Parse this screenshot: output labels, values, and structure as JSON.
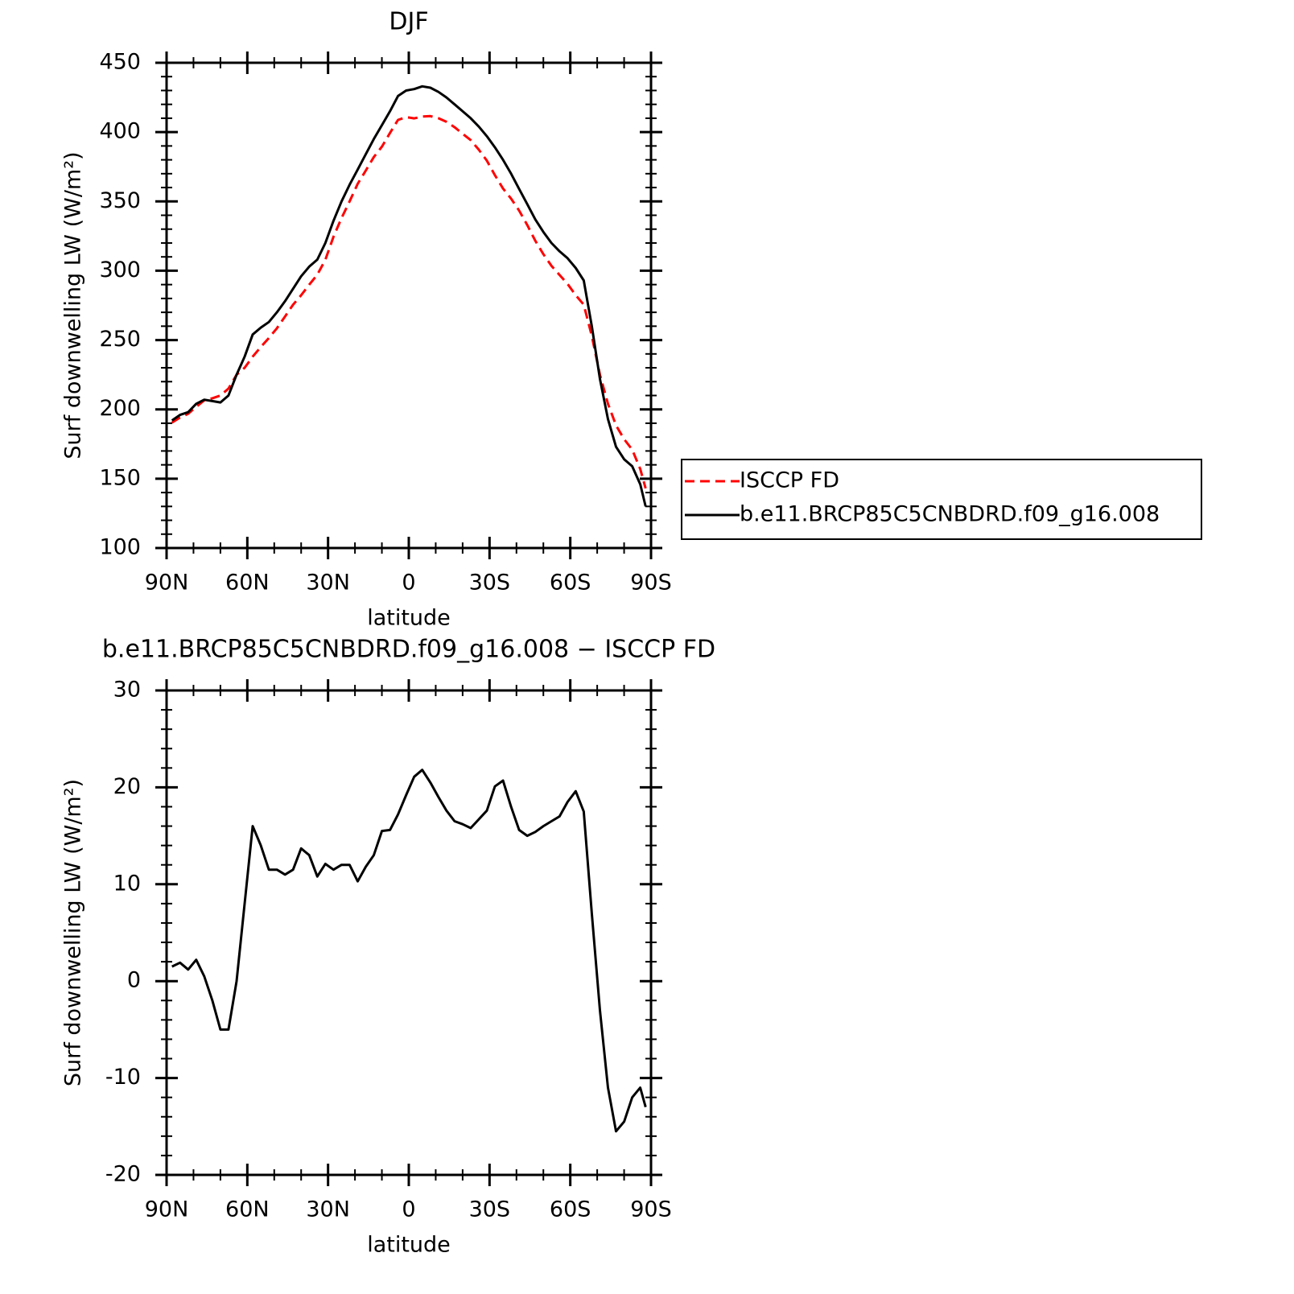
{
  "chart_data": [
    {
      "type": "line",
      "title": "DJF",
      "x_label": "latitude",
      "y_label": "Surf downwelling LW (W/m²)",
      "x": [
        88,
        85,
        82,
        79,
        76,
        73,
        70,
        67,
        64,
        61,
        58,
        55,
        52,
        49,
        46,
        43,
        40,
        37,
        34,
        31,
        28,
        25,
        22,
        19,
        16,
        13,
        10,
        7,
        4,
        1,
        -2,
        -5,
        -8,
        -11,
        -14,
        -17,
        -20,
        -23,
        -26,
        -29,
        -32,
        -35,
        -38,
        -41,
        -44,
        -47,
        -50,
        -53,
        -56,
        -59,
        -62,
        -65,
        -68,
        -71,
        -74,
        -77,
        -80,
        -83,
        -86,
        -88
      ],
      "series": [
        {
          "name": "ISCCP FD",
          "color": "#ff0000",
          "line_style": "dashed",
          "values": [
            190.5,
            194.1,
            196.8,
            201.8,
            206.5,
            208,
            210,
            215,
            225,
            230,
            238,
            245,
            251.5,
            258.5,
            267,
            275.5,
            282.3,
            290,
            297.2,
            307.9,
            324.5,
            338,
            350,
            362.7,
            372.2,
            382,
            389.5,
            399.4,
            408.8,
            410.8,
            409.9,
            411.2,
            411.5,
            410,
            407.4,
            403.5,
            398.8,
            394.2,
            387.3,
            379.4,
            368.9,
            359.3,
            352,
            343.4,
            333,
            321.6,
            312,
            303.5,
            297,
            290.5,
            282.4,
            275.5,
            253,
            225,
            204,
            188.5,
            178.5,
            171,
            157,
            143
          ]
        },
        {
          "name": "b.e11.BRCP85C5CNBDRD.f09_g16.008",
          "color": "#000000",
          "line_style": "solid",
          "values": [
            192,
            196,
            198,
            204,
            207,
            206,
            205,
            210,
            225,
            238,
            254,
            259,
            263,
            270,
            278,
            287,
            296,
            303,
            308,
            320,
            336,
            350,
            362,
            373,
            384,
            395,
            405,
            415,
            426,
            430,
            431,
            433,
            432,
            429,
            425,
            420,
            415,
            410,
            404,
            397,
            389,
            380,
            370,
            359,
            348,
            337,
            328,
            320,
            314,
            309,
            302,
            293,
            260,
            222,
            193,
            173,
            164,
            159,
            146,
            130
          ]
        }
      ],
      "xlim": [
        90,
        -90
      ],
      "xticks": [
        {
          "value": 90,
          "label": "90N"
        },
        {
          "value": 60,
          "label": "60N"
        },
        {
          "value": 30,
          "label": "30N"
        },
        0,
        {
          "value": -30,
          "label": "30S"
        },
        {
          "value": -60,
          "label": "60S"
        },
        {
          "value": -90,
          "label": "90S"
        }
      ],
      "ylim": [
        100,
        450
      ],
      "yticks": [
        100,
        150,
        200,
        250,
        300,
        350,
        400,
        450
      ],
      "legend": "right"
    },
    {
      "type": "line",
      "title": "b.e11.BRCP85C5CNBDRD.f09_g16.008 − ISCCP FD",
      "x_label": "latitude",
      "y_label": "Surf downwelling LW (W/m²)",
      "x": [
        88,
        85,
        82,
        79,
        76,
        73,
        70,
        67,
        64,
        61,
        58,
        55,
        52,
        49,
        46,
        43,
        40,
        37,
        34,
        31,
        28,
        25,
        22,
        19,
        16,
        13,
        10,
        7,
        4,
        1,
        -2,
        -5,
        -8,
        -11,
        -14,
        -17,
        -20,
        -23,
        -26,
        -29,
        -32,
        -35,
        -38,
        -41,
        -44,
        -47,
        -50,
        -53,
        -56,
        -59,
        -62,
        -65,
        -68,
        -71,
        -74,
        -77,
        -80,
        -83,
        -86,
        -88
      ],
      "color": "#000000",
      "values": [
        1.5,
        1.9,
        1.2,
        2.2,
        0.5,
        -2,
        -5,
        -5,
        0,
        8,
        16,
        14,
        11.5,
        11.5,
        11,
        11.5,
        13.7,
        13,
        10.8,
        12.1,
        11.5,
        12,
        12,
        10.3,
        11.8,
        13,
        15.5,
        15.6,
        17.2,
        19.2,
        21.1,
        21.8,
        20.5,
        19,
        17.6,
        16.5,
        16.2,
        15.8,
        16.7,
        17.6,
        20.1,
        20.7,
        18,
        15.6,
        15,
        15.4,
        16,
        16.5,
        17,
        18.5,
        19.6,
        17.5,
        7,
        -3,
        -11,
        -15.5,
        -14.5,
        -12,
        -11,
        -13
      ],
      "xlim": [
        90,
        -90
      ],
      "xticks": [
        {
          "value": 90,
          "label": "90N"
        },
        {
          "value": 60,
          "label": "60N"
        },
        {
          "value": 30,
          "label": "30N"
        },
        0,
        {
          "value": -30,
          "label": "30S"
        },
        {
          "value": -60,
          "label": "60S"
        },
        {
          "value": -90,
          "label": "90S"
        }
      ],
      "ylim": [
        -20,
        30
      ],
      "yticks": [
        -20,
        -10,
        0,
        10,
        20,
        30
      ]
    }
  ]
}
